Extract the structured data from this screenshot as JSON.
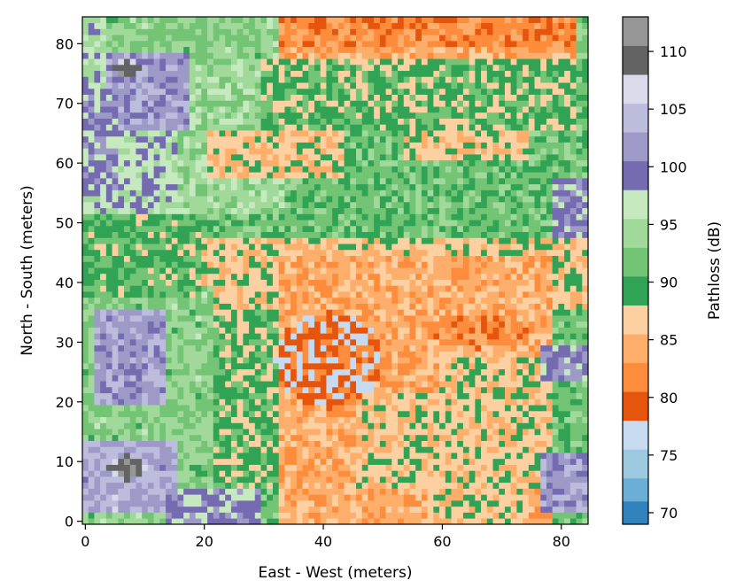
{
  "chart_data": {
    "type": "heatmap",
    "title": "",
    "xlabel": "East - West (meters)",
    "ylabel": "North - South (meters)",
    "colorbar_label": "Pathloss (dB)",
    "xlim": [
      -0.5,
      84.5
    ],
    "ylim": [
      -0.5,
      84.5
    ],
    "grid": false,
    "x_ticks": [
      0,
      20,
      40,
      60,
      80
    ],
    "y_ticks": [
      0,
      10,
      20,
      30,
      40,
      50,
      60,
      70,
      80
    ],
    "colorbar_range": [
      69,
      113
    ],
    "colorbar_ticks": [
      70,
      75,
      80,
      85,
      90,
      95,
      100,
      105,
      110
    ],
    "colorbar_bins": [
      {
        "from": 69,
        "to": 71,
        "color": "#3182bd"
      },
      {
        "from": 71,
        "to": 73,
        "color": "#6baed6"
      },
      {
        "from": 73,
        "to": 75.5,
        "color": "#9ecae1"
      },
      {
        "from": 75.5,
        "to": 78,
        "color": "#c6dbef"
      },
      {
        "from": 78,
        "to": 80.5,
        "color": "#e6550d"
      },
      {
        "from": 80.5,
        "to": 83,
        "color": "#fd8d3c"
      },
      {
        "from": 83,
        "to": 85.5,
        "color": "#fdae6b"
      },
      {
        "from": 85.5,
        "to": 88,
        "color": "#fdd0a2"
      },
      {
        "from": 88,
        "to": 90.5,
        "color": "#31a354"
      },
      {
        "from": 90.5,
        "to": 93,
        "color": "#74c476"
      },
      {
        "from": 93,
        "to": 95.5,
        "color": "#a1d99b"
      },
      {
        "from": 95.5,
        "to": 98,
        "color": "#c7e9c0"
      },
      {
        "from": 98,
        "to": 100.5,
        "color": "#756bb1"
      },
      {
        "from": 100.5,
        "to": 103,
        "color": "#9e9ac8"
      },
      {
        "from": 103,
        "to": 105.5,
        "color": "#bcbddc"
      },
      {
        "from": 105.5,
        "to": 108,
        "color": "#dadaeb"
      },
      {
        "from": 108,
        "to": 110.5,
        "color": "#636363"
      },
      {
        "from": 110.5,
        "to": 113,
        "color": "#969696"
      },
      {
        "from": 113,
        "to": 115.5,
        "color": "#bdbdbd"
      },
      {
        "from": 115.5,
        "to": 118,
        "color": "#d9d9d9"
      }
    ],
    "grid_size": [
      85,
      85
    ],
    "source_points": [
      {
        "x": 42,
        "y": 27
      },
      {
        "x": 38,
        "y": 24
      }
    ],
    "value_regions": [
      {
        "shape": "rect",
        "x0": 0,
        "x1": 85,
        "y0": 0,
        "y1": 85,
        "value": 91.5
      },
      {
        "shape": "rect",
        "x0": 20,
        "x1": 85,
        "y0": 36,
        "y1": 52,
        "value": 91.7
      },
      {
        "shape": "rect",
        "x0": 0,
        "x1": 34,
        "y0": 52,
        "y1": 85,
        "value": 94.2
      },
      {
        "shape": "rect",
        "x0": 30,
        "x1": 83,
        "y0": 66,
        "y1": 78,
        "value": 89.2
      },
      {
        "shape": "rect",
        "x0": 20,
        "x1": 35,
        "y0": 6,
        "y1": 48,
        "value": 89.2
      },
      {
        "shape": "rect",
        "x0": 33,
        "x1": 83,
        "y0": 78,
        "y1": 85,
        "value": 81.8
      },
      {
        "shape": "rect",
        "x0": 33,
        "x1": 83,
        "y0": 78,
        "y1": 80,
        "value": 84.2
      },
      {
        "shape": "rect",
        "x0": 21,
        "x1": 85,
        "y0": 36,
        "y1": 48,
        "value": 86.7
      },
      {
        "shape": "rect",
        "x0": 33,
        "x1": 79,
        "y0": 0,
        "y1": 45,
        "value": 84.2
      },
      {
        "shape": "rect",
        "x0": 20,
        "x1": 33,
        "y0": 38,
        "y1": 48,
        "value": 86.7
      },
      {
        "shape": "rect",
        "x0": 34,
        "x1": 44,
        "y0": 0,
        "y1": 20,
        "value": 84.2
      },
      {
        "shape": "rect",
        "x0": 46,
        "x1": 79,
        "y0": 6,
        "y1": 22,
        "value": 86.7
      },
      {
        "shape": "rect",
        "x0": 60,
        "x1": 79,
        "y0": 22,
        "y1": 28,
        "value": 86.7
      },
      {
        "shape": "rect",
        "x0": 58,
        "x1": 75,
        "y0": 0,
        "y1": 6,
        "value": 86.7
      },
      {
        "shape": "rect",
        "x0": 21,
        "x1": 44,
        "y0": 58,
        "y1": 66,
        "value": 86.7
      },
      {
        "shape": "rect",
        "x0": 54,
        "x1": 75,
        "y0": 61,
        "y1": 66,
        "value": 86.7
      },
      {
        "shape": "rect",
        "x0": 0,
        "x1": 16,
        "y0": 52,
        "y1": 85,
        "value": 96.7
      },
      {
        "shape": "rect",
        "x0": 4,
        "x1": 30,
        "y0": 78,
        "y1": 85,
        "value": 93.0
      },
      {
        "shape": "rect",
        "x0": 4,
        "x1": 18,
        "y0": 66,
        "y1": 79,
        "value": 101.7
      },
      {
        "shape": "rect",
        "x0": 0,
        "x1": 6,
        "y0": 55,
        "y1": 73,
        "value": 99.2
      },
      {
        "shape": "rect",
        "x0": 0,
        "x1": 22,
        "y0": 0,
        "y1": 40,
        "value": 93.0
      },
      {
        "shape": "rect",
        "x0": 2,
        "x1": 14,
        "y0": 20,
        "y1": 36,
        "value": 101.7
      },
      {
        "shape": "rect",
        "x0": 0,
        "x1": 16,
        "y0": 2,
        "y1": 14,
        "value": 103.0
      },
      {
        "shape": "rect",
        "x0": 14,
        "x1": 30,
        "y0": 0,
        "y1": 6,
        "value": 99.2
      },
      {
        "shape": "rect",
        "x0": 0,
        "x1": 20,
        "y0": 38,
        "y1": 52,
        "value": 90.0
      },
      {
        "shape": "rect",
        "x0": 77,
        "x1": 85,
        "y0": 2,
        "y1": 12,
        "value": 101.7
      },
      {
        "shape": "rect",
        "x0": 77,
        "x1": 85,
        "y0": 24,
        "y1": 30,
        "value": 99.2
      },
      {
        "shape": "rect",
        "x0": 79,
        "x1": 85,
        "y0": 48,
        "y1": 58,
        "value": 99.2
      },
      {
        "shape": "ellipse",
        "cx": 41,
        "cy": 27,
        "rx": 9,
        "ry": 8,
        "value": 79.0
      },
      {
        "shape": "ellipse",
        "cx": 66,
        "cy": 32,
        "rx": 9,
        "ry": 3,
        "value": 81.8
      },
      {
        "shape": "ellipse",
        "cx": 7,
        "cy": 9,
        "rx": 3,
        "ry": 2,
        "value": 109.0
      },
      {
        "shape": "ellipse",
        "cx": 7,
        "cy": 76,
        "rx": 2,
        "ry": 1.5,
        "value": 109.0
      }
    ]
  }
}
